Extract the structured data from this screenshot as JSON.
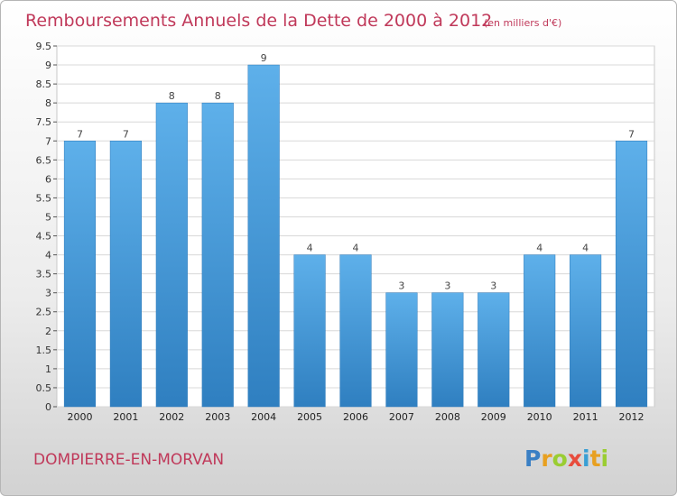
{
  "title": "Remboursements Annuels de la Dette de 2000 à 2012",
  "subtitle": "(en milliers d'€)",
  "location": "DOMPIERRE-EN-MORVAN",
  "brand": {
    "letters": [
      "P",
      "r",
      "o",
      "x",
      "i",
      "t",
      "i"
    ],
    "colors": [
      "#3a7fc4",
      "#e8a020",
      "#9acd32",
      "#e84c3d",
      "#3a9fd4",
      "#e8a020",
      "#9acd32"
    ]
  },
  "chart_data": {
    "type": "bar",
    "categories": [
      "2000",
      "2001",
      "2002",
      "2003",
      "2004",
      "2005",
      "2006",
      "2007",
      "2008",
      "2009",
      "2010",
      "2011",
      "2012"
    ],
    "values": [
      7,
      7,
      8,
      8,
      9,
      4,
      4,
      3,
      3,
      3,
      4,
      4,
      7
    ],
    "value_labels": [
      "7",
      "7",
      "8",
      "8",
      "9",
      "4",
      "4",
      "3",
      "3",
      "3",
      "4",
      "4",
      "7"
    ],
    "yticks": [
      "0",
      "0.5",
      "1",
      "1.5",
      "2",
      "2.5",
      "3",
      "3.5",
      "4",
      "4.5",
      "5",
      "5.5",
      "6",
      "6.5",
      "7",
      "7.5",
      "8",
      "8.5",
      "9",
      "9.5"
    ],
    "ylim": [
      0,
      9.5
    ],
    "grid": true,
    "bar_color": "#4ea3e2"
  }
}
